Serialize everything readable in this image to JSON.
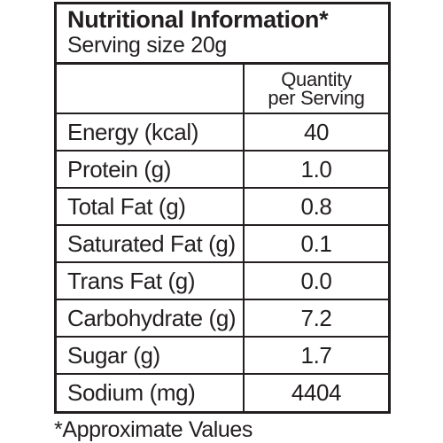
{
  "label": {
    "title": "Nutritional Information*",
    "serving_size": "Serving size 20g",
    "column_header_line1": "Quantity",
    "column_header_line2": "per Serving",
    "rows": [
      {
        "nutrient": "Energy (kcal)",
        "value": "40"
      },
      {
        "nutrient": "Protein (g)",
        "value": "1.0"
      },
      {
        "nutrient": "Total Fat (g)",
        "value": "0.8"
      },
      {
        "nutrient": "Saturated Fat (g)",
        "value": "0.1"
      },
      {
        "nutrient": "Trans Fat (g)",
        "value": "0.0"
      },
      {
        "nutrient": "Carbohydrate (g)",
        "value": "7.2"
      },
      {
        "nutrient": "Sugar (g)",
        "value": "1.7"
      },
      {
        "nutrient": "Sodium (mg)",
        "value": "4404"
      }
    ],
    "footnote": "*Approximate Values"
  },
  "colors": {
    "ink": "#231f20",
    "background": "#ffffff"
  }
}
